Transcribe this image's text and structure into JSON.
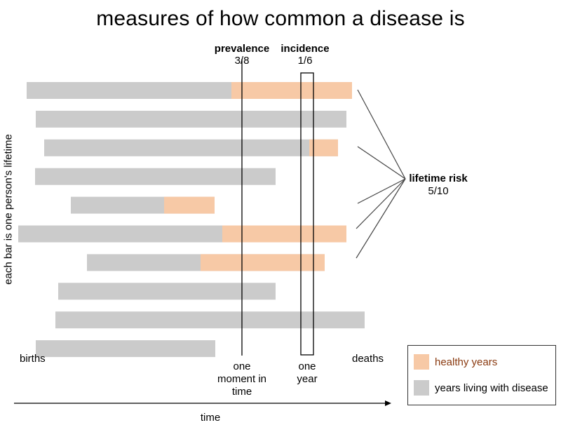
{
  "title": "measures of how common a disease is",
  "y_axis_label": "each bar is one person's  lifetime",
  "x_axis_label": "time",
  "labels": {
    "births": "births",
    "deaths": "deaths",
    "prevalence_title": "prevalence",
    "prevalence_value": "3/8",
    "incidence_title": "incidence",
    "incidence_value": "1/6",
    "lifetime_risk_title": "lifetime risk",
    "lifetime_risk_value": "5/10",
    "moment_line1": "one",
    "moment_line2": "moment in",
    "moment_line3": "time",
    "year_line1": "one",
    "year_line2": "year"
  },
  "legend": {
    "healthy": "healthy years",
    "disease": "years living with disease"
  },
  "colors": {
    "healthy": "#f7c9a6",
    "disease": "#cbcbcb",
    "healthy_text": "#8a3a10"
  },
  "lifetimes": [
    {
      "birth": 38,
      "disease_start": 330,
      "death": 502
    },
    {
      "birth": 51,
      "disease_start": null,
      "death": 494
    },
    {
      "birth": 63,
      "disease_start": 441,
      "death": 482
    },
    {
      "birth": 50,
      "disease_start": null,
      "death": 393
    },
    {
      "birth": 101,
      "disease_start": 234,
      "death": 306
    },
    {
      "birth": 26,
      "disease_start": 317,
      "death": 494
    },
    {
      "birth": 124,
      "disease_start": 286,
      "death": 463
    },
    {
      "birth": 83,
      "disease_start": null,
      "death": 393
    },
    {
      "birth": 79,
      "disease_start": null,
      "death": 520
    },
    {
      "birth": 51,
      "disease_start": null,
      "death": 307
    }
  ]
}
